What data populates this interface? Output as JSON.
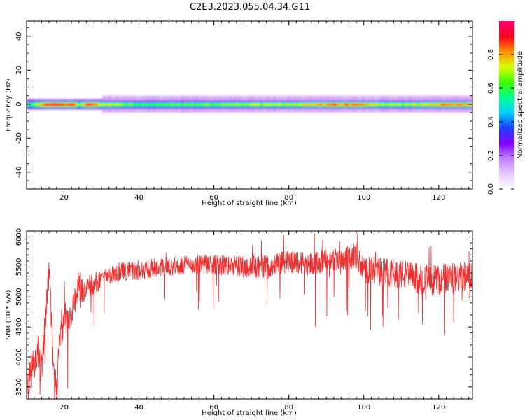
{
  "figure_title": "C2E3.2023.055.04.34.G11",
  "chart_data": [
    {
      "type": "heatmap",
      "title": "",
      "xlabel": "Height of straight line (km)",
      "ylabel": "Frequency (Hz)",
      "xlim": [
        10,
        129
      ],
      "ylim": [
        -50,
        49
      ],
      "xticks": [
        20,
        40,
        60,
        80,
        100,
        120
      ],
      "yticks": [
        -40,
        -20,
        0,
        20,
        40
      ],
      "grid": false,
      "colorbar": {
        "label": "Normalized spectral amplitude",
        "range": [
          0,
          1
        ],
        "ticks": [
          "0.0",
          "0.2",
          "0.4",
          "0.6",
          "0.8"
        ],
        "colormap": "gist_rainbow",
        "colors": [
          "#ffffff",
          "#e8c8ff",
          "#c080ff",
          "#8000ff",
          "#2040ff",
          "#00d0ff",
          "#00ff90",
          "#40ff00",
          "#d8ff00",
          "#ff9000",
          "#ff0020",
          "#ff0070"
        ]
      },
      "band": {
        "center_hz": 0,
        "note": "energy concentrated near 0 Hz",
        "peak_amplitude_by_height": {
          "x_km": [
            11,
            15,
            17,
            20,
            22,
            24,
            26,
            30,
            40,
            50,
            60,
            70,
            80,
            90,
            95,
            100,
            105,
            110,
            115,
            120,
            129
          ],
          "peak": [
            0.55,
            0.9,
            0.95,
            0.85,
            0.95,
            0.6,
            0.95,
            0.75,
            0.6,
            0.62,
            0.65,
            0.68,
            0.72,
            0.82,
            0.85,
            0.8,
            0.7,
            0.68,
            0.72,
            0.8,
            0.82
          ]
        }
      }
    },
    {
      "type": "line",
      "title": "",
      "xlabel": "Height of straight line (km)",
      "ylabel": "SNR (10 * v/v)",
      "xlim": [
        10,
        129
      ],
      "ylim": [
        3300,
        6100
      ],
      "xticks": [
        20,
        40,
        60,
        80,
        100,
        120
      ],
      "yticks": [
        3500,
        4000,
        4500,
        5000,
        5500,
        6000
      ],
      "grid": false,
      "color": "#f03030",
      "series": [
        {
          "x": [
            10,
            11,
            12,
            13,
            14,
            15,
            16,
            17,
            18,
            19,
            20,
            21,
            22,
            23,
            24,
            25,
            26,
            27,
            28,
            30,
            32,
            35,
            40,
            45,
            50,
            55,
            60,
            65,
            70,
            75,
            80,
            85,
            90,
            95,
            98,
            100,
            105,
            110,
            115,
            120,
            125,
            129
          ],
          "values": [
            3500,
            3700,
            3900,
            4150,
            3750,
            4600,
            5550,
            4050,
            3450,
            4450,
            4600,
            4600,
            4800,
            5000,
            5300,
            5080,
            5180,
            5200,
            5200,
            5300,
            5380,
            5420,
            5430,
            5500,
            5520,
            5540,
            5530,
            5520,
            5500,
            5520,
            5600,
            5550,
            5600,
            5650,
            5700,
            5450,
            5420,
            5380,
            5300,
            5280,
            5320,
            5350
          ],
          "noise_amplitude": [
            250,
            300,
            300,
            300,
            300,
            280,
            150,
            320,
            250,
            300,
            300,
            300,
            280,
            260,
            230,
            200,
            200,
            200,
            200,
            180,
            170,
            160,
            160,
            160,
            160,
            170,
            170,
            180,
            190,
            190,
            200,
            200,
            200,
            210,
            220,
            230,
            240,
            250,
            260,
            270,
            260,
            250
          ]
        }
      ]
    }
  ]
}
